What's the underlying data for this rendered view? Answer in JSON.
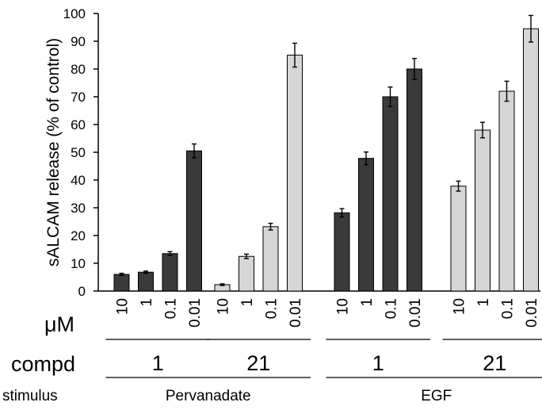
{
  "chart_data": {
    "type": "bar",
    "ylabel": "sALCAM release (% of control)",
    "ylim": [
      0,
      100
    ],
    "yticks": [
      0,
      10,
      20,
      30,
      40,
      50,
      60,
      70,
      80,
      90,
      100
    ],
    "grid": false,
    "legend": "none",
    "concentration_unit": "μM",
    "compd_row_label": "compd",
    "stimulus_row_label": "stimulus",
    "colors": {
      "compd_1": "#3a3a3a",
      "compd_21": "#d6d6d6"
    },
    "groups": [
      {
        "stimulus": "Pervanadate",
        "compd": "1",
        "fill": "dark",
        "conc": [
          "10",
          "1",
          "0.1",
          "0.01"
        ],
        "values": [
          6,
          6.8,
          13.5,
          50.5
        ],
        "errors": [
          0.4,
          0.4,
          0.7,
          2.5
        ]
      },
      {
        "stimulus": "Pervanadate",
        "compd": "21",
        "fill": "light",
        "conc": [
          "10",
          "1",
          "0.1",
          "0.01"
        ],
        "values": [
          2.3,
          12.5,
          23.2,
          85
        ],
        "errors": [
          0.3,
          0.8,
          1.2,
          4.3
        ]
      },
      {
        "stimulus": "EGF",
        "compd": "1",
        "fill": "dark",
        "conc": [
          "10",
          "1",
          "0.1",
          "0.01"
        ],
        "values": [
          28.2,
          47.8,
          70,
          80
        ],
        "errors": [
          1.5,
          2.3,
          3.5,
          3.8
        ]
      },
      {
        "stimulus": "EGF",
        "compd": "21",
        "fill": "light",
        "conc": [
          "10",
          "1",
          "0.1",
          "0.01"
        ],
        "values": [
          37.8,
          58,
          72,
          94.5
        ],
        "errors": [
          1.8,
          2.8,
          3.6,
          4.8
        ]
      }
    ],
    "stimuli": [
      "Pervanadate",
      "EGF"
    ]
  }
}
